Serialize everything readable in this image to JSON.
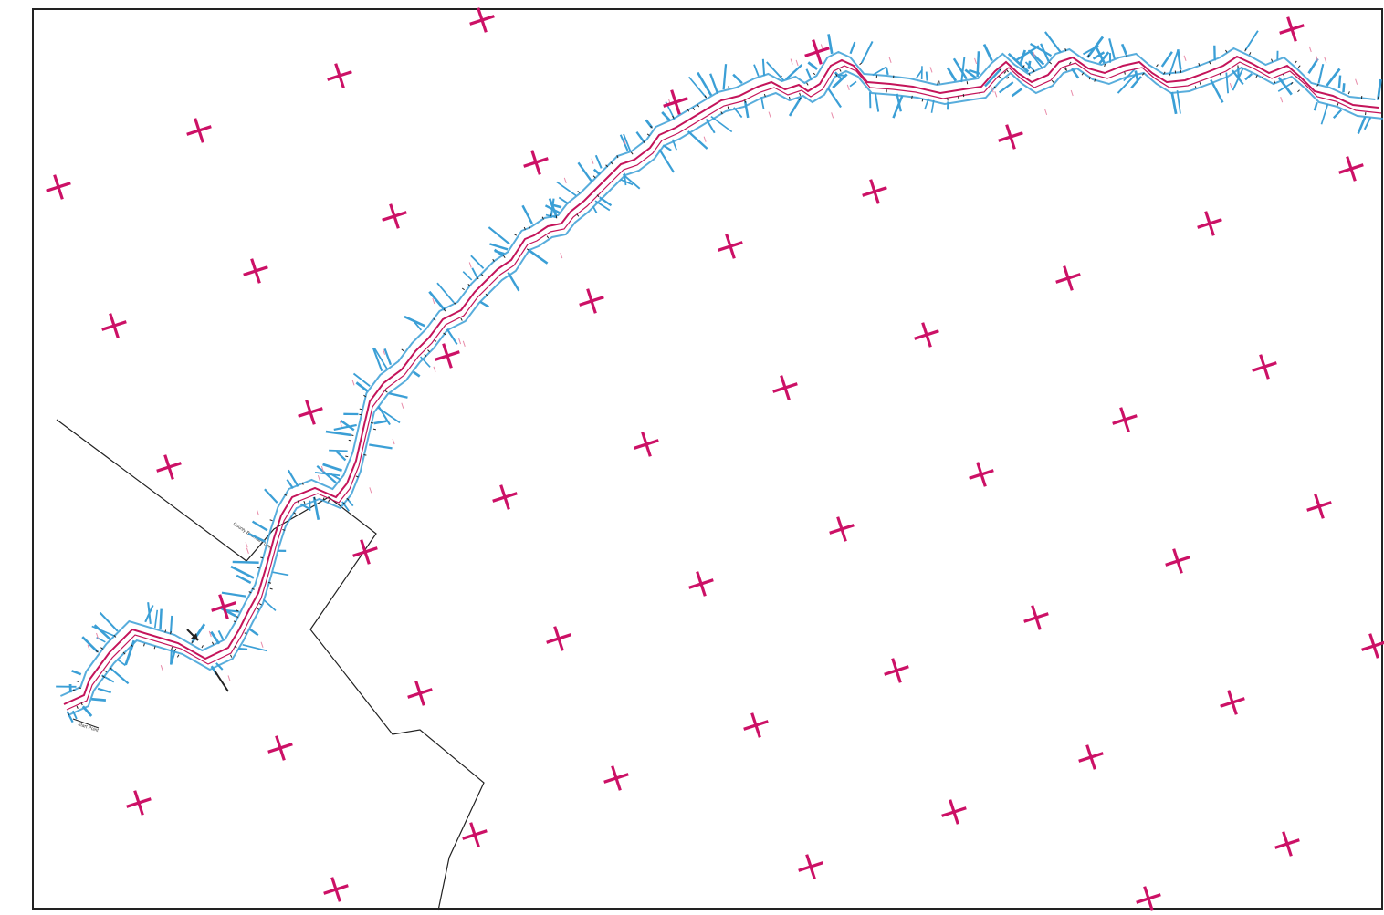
{
  "map": {
    "colors": {
      "grid_cross": "#cc1166",
      "route_line": "#c4145a",
      "edge_features": "#3b9fd6",
      "boundary": "#222222",
      "frame": "#222222",
      "background": "#ffffff"
    },
    "labels": {
      "boundary_label": "County Boundary Line",
      "start_label": "Start Point"
    },
    "icons": {
      "grid_marker": "grid-cross-icon",
      "north_arrow": "arrow-icon"
    }
  }
}
